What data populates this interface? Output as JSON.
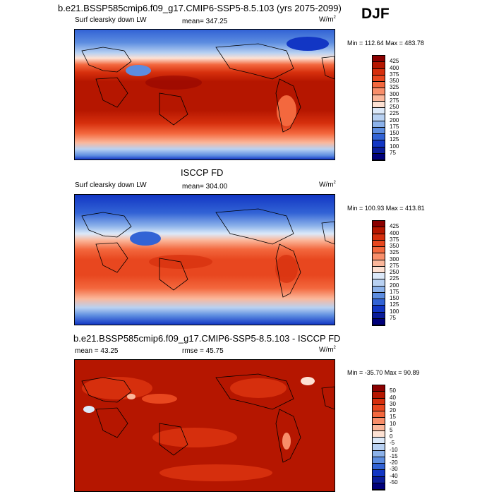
{
  "season": "DJF",
  "panels": [
    {
      "title": "b.e21.BSSP585cmip6.f09_g17.CMIP6-SSP5-8.5.103 (yrs 2075-2099)",
      "left_label": "Surf clearsky down LW",
      "stat_label": "mean= 347.25",
      "units_base": "W/m",
      "units_sup": "2",
      "minmax": "Min = 112.64 Max = 483.78",
      "colorbar": {
        "levels": [
          "425",
          "400",
          "375",
          "350",
          "325",
          "300",
          "275",
          "250",
          "225",
          "200",
          "175",
          "150",
          "125",
          "100",
          "75"
        ],
        "colors": [
          "#8b0000",
          "#b51600",
          "#d62f0d",
          "#e8471f",
          "#f3683e",
          "#f88e6a",
          "#fbb79b",
          "#fde1d3",
          "#dce9f9",
          "#b8d1f2",
          "#8cb2ea",
          "#5d8de0",
          "#3263d5",
          "#1236c4",
          "#0a1c9a",
          "#00007a"
        ]
      }
    },
    {
      "title": "ISCCP FD",
      "left_label": "Surf clearsky down LW",
      "stat_label": "mean= 304.00",
      "units_base": "W/m",
      "units_sup": "2",
      "minmax": "Min = 100.93 Max = 413.81",
      "colorbar": {
        "levels": [
          "425",
          "400",
          "375",
          "350",
          "325",
          "300",
          "275",
          "250",
          "225",
          "200",
          "175",
          "150",
          "125",
          "100",
          "75"
        ],
        "colors": [
          "#8b0000",
          "#b51600",
          "#d62f0d",
          "#e8471f",
          "#f3683e",
          "#f88e6a",
          "#fbb79b",
          "#fde1d3",
          "#dce9f9",
          "#b8d1f2",
          "#8cb2ea",
          "#5d8de0",
          "#3263d5",
          "#1236c4",
          "#0a1c9a",
          "#00007a"
        ]
      }
    },
    {
      "title": "b.e21.BSSP585cmip6.f09_g17.CMIP6-SSP5-8.5.103 - ISCCP FD",
      "left_label": "mean =  43.25",
      "stat_label": "rmse =  45.75",
      "units_base": "W/m",
      "units_sup": "2",
      "minmax": "Min = -35.70 Max =  90.89",
      "colorbar": {
        "levels": [
          "50",
          "40",
          "30",
          "20",
          "15",
          "10",
          "5",
          "0",
          "-5",
          "-10",
          "-15",
          "-20",
          "-30",
          "-40",
          "-50"
        ],
        "colors": [
          "#8b0000",
          "#b51600",
          "#d62f0d",
          "#e8471f",
          "#f3683e",
          "#f88e6a",
          "#fbb79b",
          "#fde1d3",
          "#dce9f9",
          "#b8d1f2",
          "#8cb2ea",
          "#5d8de0",
          "#3263d5",
          "#1236c4",
          "#0a1c9a",
          "#00007a"
        ]
      }
    }
  ]
}
